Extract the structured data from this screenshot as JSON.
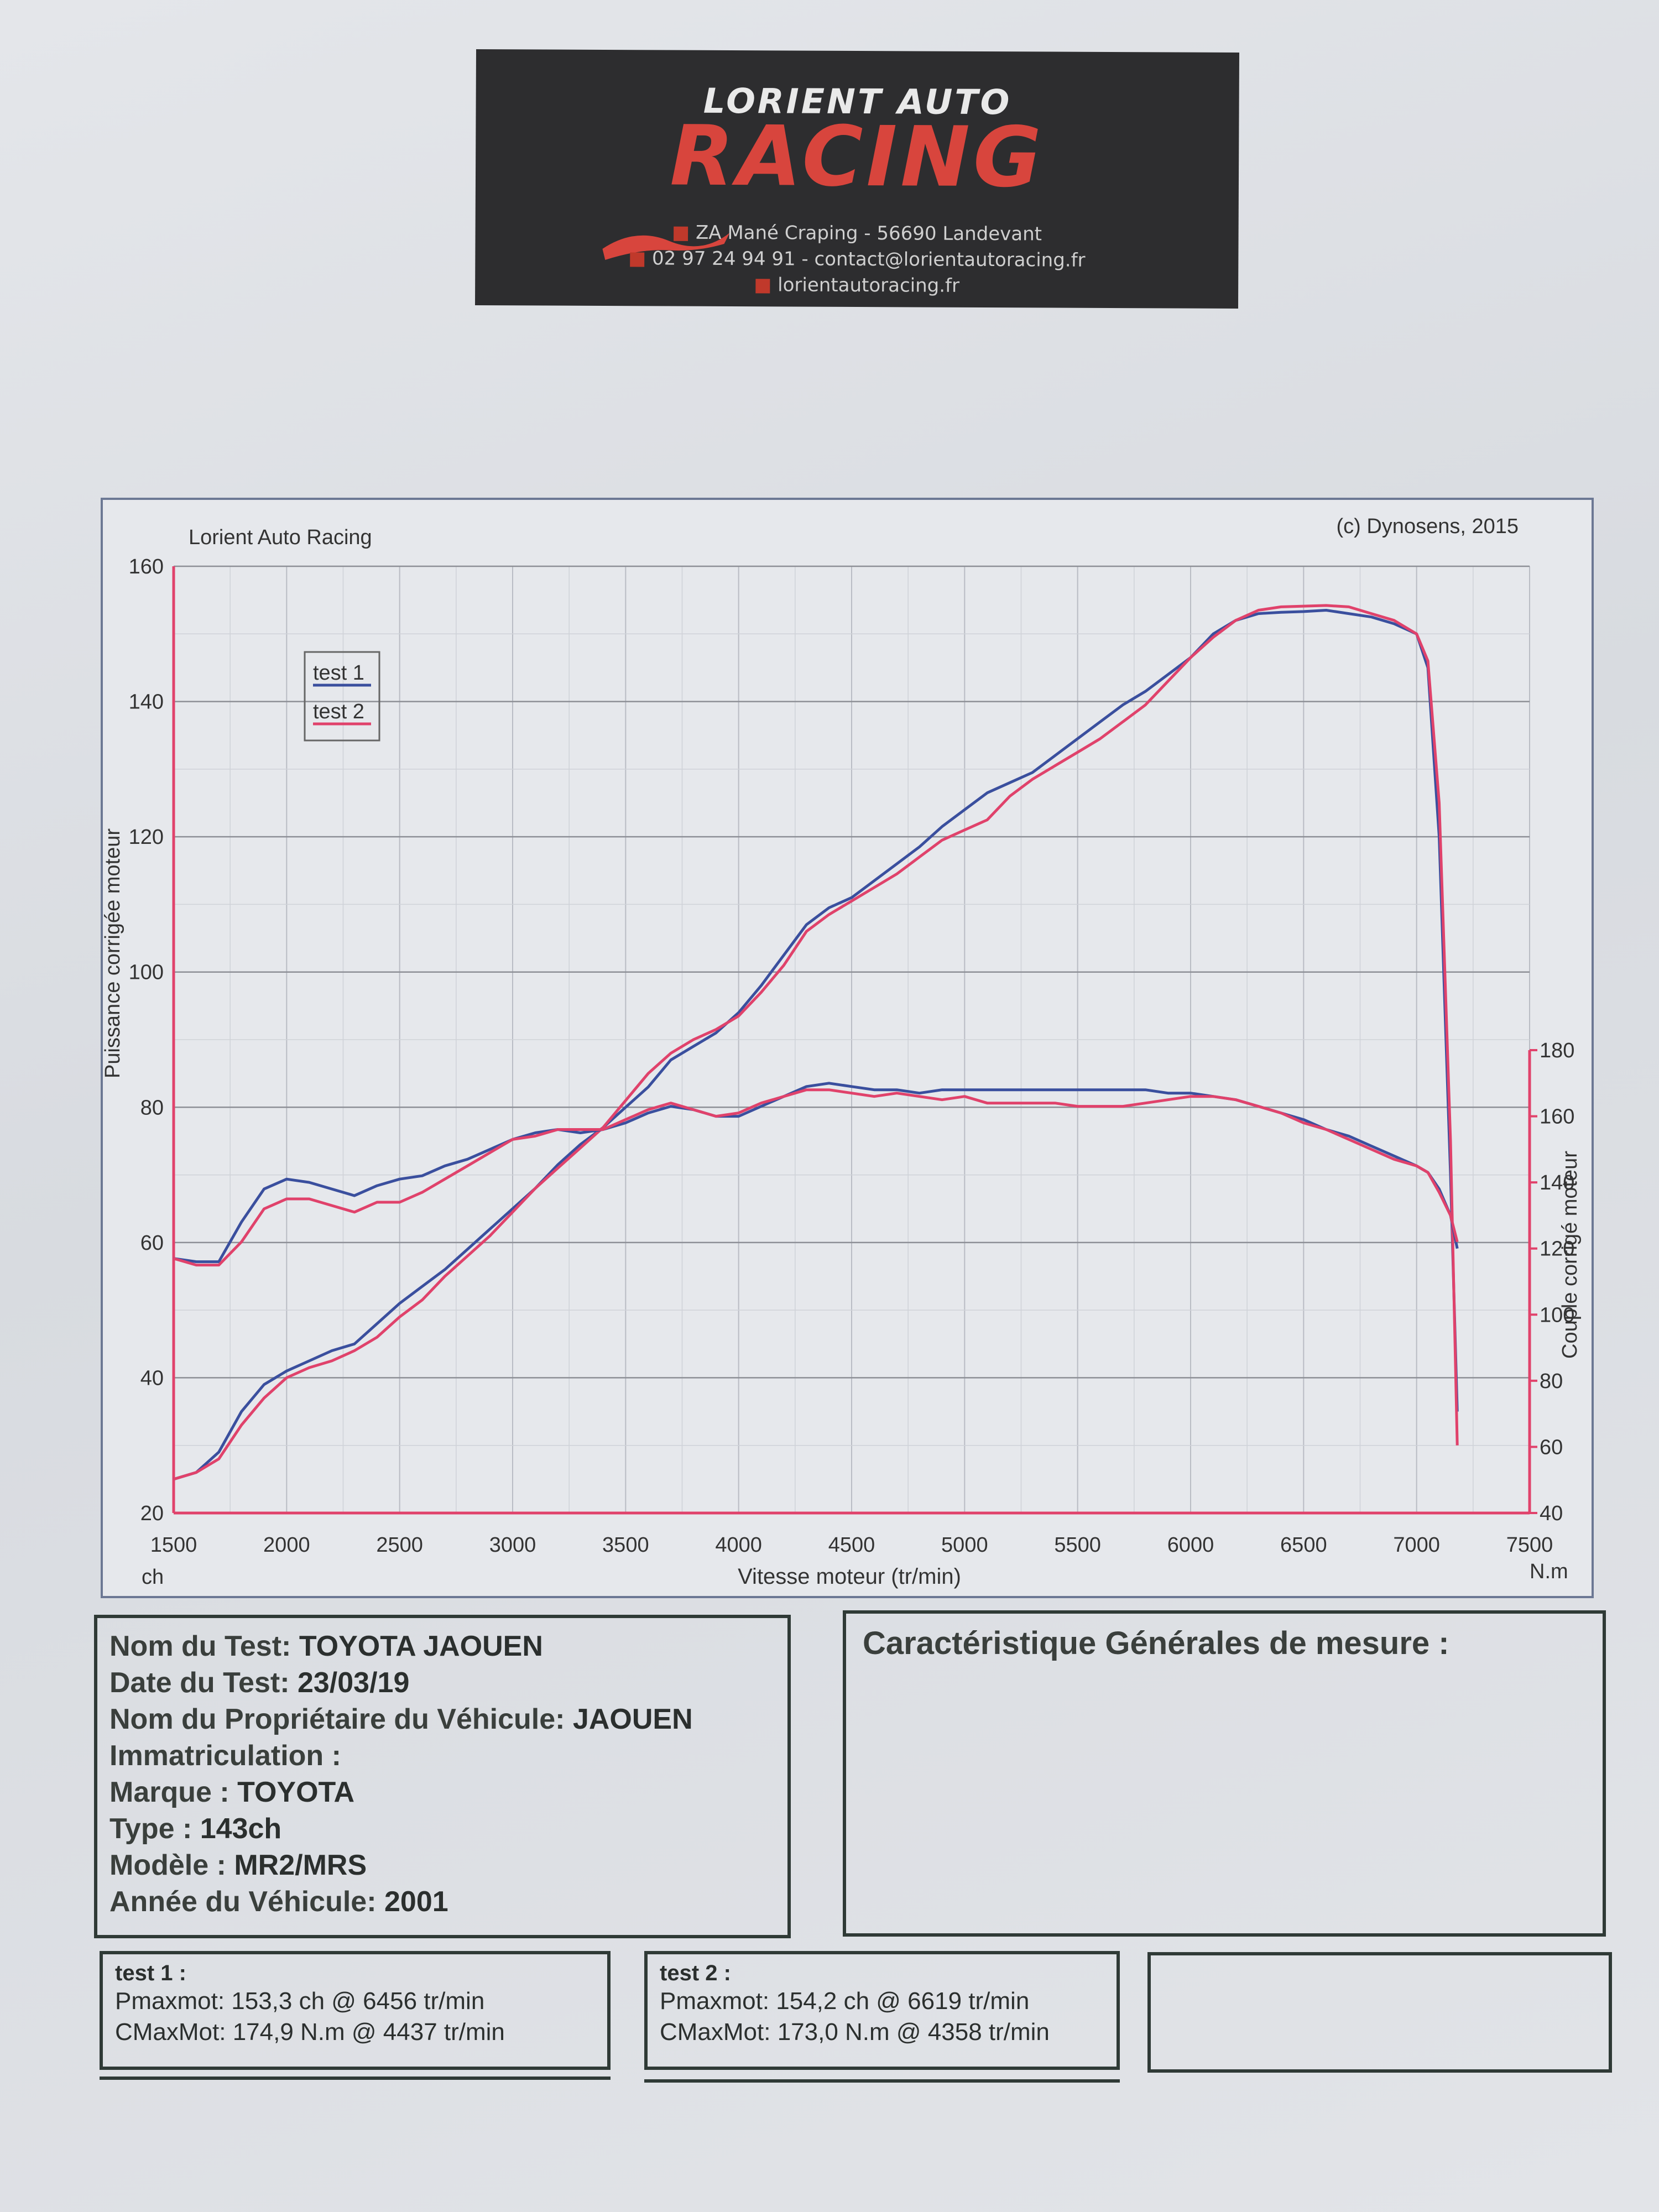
{
  "header": {
    "brand_top": "LORIENT AUTO",
    "brand_main": "RACING",
    "address": "ZA Mané Craping - 56690 Landevant",
    "phone_email": "02 97 24 94 91 - contact@lorientautoracing.fr",
    "website": "lorientautoracing.fr",
    "brand_color": "#d8453d"
  },
  "chart_data": {
    "type": "line",
    "title_left": "Lorient Auto Racing",
    "title_right": "(c) Dynosens, 2015",
    "xlabel": "Vitesse moteur (tr/min)",
    "ylabel_left": "Puissance corrigée moteur",
    "ylabel_right": "Couple corrigé moteur",
    "unit_left": "ch",
    "unit_right": "N.m",
    "xlim": [
      1500,
      7500
    ],
    "ylim_left": [
      20,
      160
    ],
    "ylim_right": [
      40,
      180
    ],
    "x_ticks": [
      "1500",
      "2000",
      "2500",
      "3000",
      "3500",
      "4000",
      "4500",
      "5000",
      "5500",
      "6000",
      "6500",
      "7000",
      "7500"
    ],
    "y_ticks_left": [
      "20",
      "40",
      "60",
      "80",
      "100",
      "120",
      "140",
      "160"
    ],
    "y_ticks_right": [
      "40",
      "60",
      "80",
      "100",
      "120",
      "140",
      "160",
      "180"
    ],
    "grid": true,
    "legend_position": "top-left",
    "colors": {
      "test1": "#3a4f9e",
      "test2": "#e0426b",
      "axis": "#e0426b"
    },
    "series": [
      {
        "name": "test 1",
        "measure": "power",
        "axis": "left",
        "x": [
          1500,
          1600,
          1700,
          1800,
          1900,
          2000,
          2100,
          2200,
          2300,
          2400,
          2500,
          2600,
          2700,
          2800,
          2900,
          3000,
          3100,
          3200,
          3300,
          3400,
          3500,
          3600,
          3700,
          3800,
          3900,
          4000,
          4100,
          4200,
          4300,
          4400,
          4500,
          4600,
          4700,
          4800,
          4900,
          5000,
          5100,
          5200,
          5300,
          5400,
          5500,
          5600,
          5700,
          5800,
          5900,
          6000,
          6100,
          6200,
          6300,
          6400,
          6500,
          6600,
          6700,
          6800,
          6900,
          7000,
          7050,
          7100,
          7150,
          7180
        ],
        "y": [
          25,
          26,
          29,
          35,
          39,
          41,
          42.5,
          44,
          45,
          48,
          51,
          53.5,
          56,
          59,
          62,
          65,
          68,
          71.5,
          74.5,
          77,
          80,
          83,
          87,
          89,
          91,
          94,
          98,
          102.5,
          107,
          109.5,
          111,
          113.5,
          116,
          118.5,
          121.5,
          124,
          126.5,
          128,
          129.5,
          132,
          134.5,
          137,
          139.5,
          141.5,
          144,
          146.5,
          150,
          152,
          153,
          153.2,
          153.3,
          153.5,
          153,
          152.5,
          151.5,
          150,
          145,
          120,
          70,
          35
        ]
      },
      {
        "name": "test 2",
        "measure": "power",
        "axis": "left",
        "x": [
          1500,
          1600,
          1700,
          1800,
          1900,
          2000,
          2100,
          2200,
          2300,
          2400,
          2500,
          2600,
          2700,
          2800,
          2900,
          3000,
          3100,
          3200,
          3300,
          3400,
          3500,
          3600,
          3700,
          3800,
          3900,
          4000,
          4100,
          4200,
          4300,
          4400,
          4500,
          4600,
          4700,
          4800,
          4900,
          5000,
          5100,
          5200,
          5300,
          5400,
          5500,
          5600,
          5700,
          5800,
          5900,
          6000,
          6100,
          6200,
          6300,
          6400,
          6500,
          6600,
          6700,
          6800,
          6900,
          7000,
          7050,
          7100,
          7150,
          7180
        ],
        "y": [
          25,
          26,
          28,
          33,
          37,
          40,
          41.5,
          42.5,
          44,
          46,
          49,
          51.5,
          55,
          58,
          61,
          64.5,
          68,
          71,
          74,
          77,
          81,
          85,
          88,
          90,
          91.5,
          93.5,
          97,
          101,
          106,
          108.5,
          110.5,
          112.5,
          114.5,
          117,
          119.5,
          121,
          122.5,
          126,
          128.5,
          130.5,
          132.5,
          134.5,
          137,
          139.5,
          143,
          146.5,
          149.5,
          152,
          153.5,
          154,
          154.1,
          154.2,
          154,
          153,
          152,
          150,
          146,
          125,
          75,
          30
        ]
      },
      {
        "name": "test 1",
        "measure": "torque",
        "axis": "right",
        "x": [
          1500,
          1600,
          1700,
          1800,
          1900,
          2000,
          2100,
          2200,
          2300,
          2400,
          2500,
          2600,
          2700,
          2800,
          2900,
          3000,
          3100,
          3200,
          3300,
          3400,
          3500,
          3600,
          3700,
          3800,
          3900,
          4000,
          4100,
          4200,
          4300,
          4400,
          4500,
          4600,
          4700,
          4800,
          4900,
          5000,
          5100,
          5200,
          5300,
          5400,
          5500,
          5600,
          5700,
          5800,
          5900,
          6000,
          6100,
          6200,
          6300,
          6400,
          6500,
          6600,
          6700,
          6800,
          6900,
          7000,
          7050,
          7100,
          7150,
          7180
        ],
        "y": [
          117,
          116,
          116,
          128,
          138,
          141,
          140,
          138,
          136,
          139,
          141,
          142,
          145,
          147,
          150,
          153,
          155,
          156,
          155,
          156,
          158,
          161,
          163,
          162,
          160,
          160,
          163,
          166,
          169,
          170,
          169,
          168,
          168,
          167,
          168,
          168,
          168,
          168,
          168,
          168,
          168,
          168,
          168,
          168,
          167,
          167,
          166,
          165,
          163,
          161,
          159,
          156,
          154,
          151,
          148,
          145,
          143,
          138,
          130,
          120
        ]
      },
      {
        "name": "test 2",
        "measure": "torque",
        "axis": "right",
        "x": [
          1500,
          1600,
          1700,
          1800,
          1900,
          2000,
          2100,
          2200,
          2300,
          2400,
          2500,
          2600,
          2700,
          2800,
          2900,
          3000,
          3100,
          3200,
          3300,
          3400,
          3500,
          3600,
          3700,
          3800,
          3900,
          4000,
          4100,
          4200,
          4300,
          4400,
          4500,
          4600,
          4700,
          4800,
          4900,
          5000,
          5100,
          5200,
          5300,
          5400,
          5500,
          5600,
          5700,
          5800,
          5900,
          6000,
          6100,
          6200,
          6300,
          6400,
          6500,
          6600,
          6700,
          6800,
          6900,
          7000,
          7050,
          7100,
          7150,
          7180
        ],
        "y": [
          117,
          115,
          115,
          122,
          132,
          135,
          135,
          133,
          131,
          134,
          134,
          137,
          141,
          145,
          149,
          153,
          154,
          156,
          156,
          156,
          159,
          162,
          164,
          162,
          160,
          161,
          164,
          166,
          168,
          168,
          167,
          166,
          167,
          166,
          165,
          166,
          164,
          164,
          164,
          164,
          163,
          163,
          163,
          164,
          165,
          166,
          166,
          165,
          163,
          161,
          158,
          156,
          153,
          150,
          147,
          145,
          143,
          137,
          130,
          122
        ]
      }
    ]
  },
  "info": {
    "test_name_label": "Nom du Test:",
    "test_name": "TOYOTA JAOUEN",
    "date_label": "Date du Test:",
    "date": "23/03/19",
    "owner_label": "Nom du Propriétaire du Véhicule:",
    "owner": "JAOUEN",
    "plate_label": "Immatriculation :",
    "brand_label": "Marque :",
    "brand": "TOYOTA",
    "type_label": "Type :",
    "type": "143ch",
    "model_label": "Modèle :",
    "model": "MR2/MRS",
    "year_label": "Année du Véhicule:",
    "year": "2001"
  },
  "caracteristiques": {
    "title": "Caractéristique Générales de mesure :"
  },
  "results": [
    {
      "title": "test 1 :",
      "pmax": "Pmaxmot: 153,3 ch @ 6456 tr/min",
      "cmax": "CMaxMot: 174,9 N.m @ 4437 tr/min"
    },
    {
      "title": "test 2 :",
      "pmax": "Pmaxmot: 154,2 ch @ 6619 tr/min",
      "cmax": "CMaxMot: 173,0 N.m @ 4358 tr/min"
    }
  ]
}
